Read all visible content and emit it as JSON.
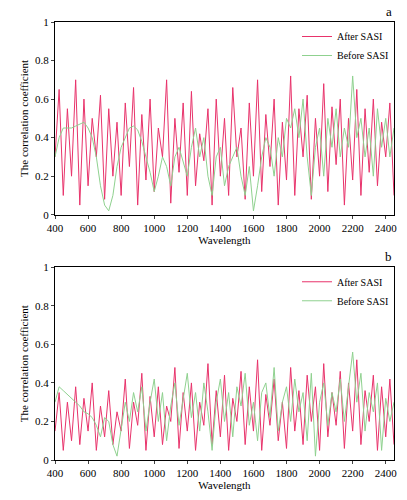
{
  "chart_data": [
    {
      "type": "line",
      "annotations": [
        "a"
      ],
      "x_label": "Wavelength",
      "y_label": "The correlation coefficient",
      "x": [
        400,
        425,
        450,
        475,
        500,
        525,
        550,
        575,
        600,
        625,
        650,
        675,
        700,
        725,
        750,
        775,
        800,
        825,
        850,
        875,
        900,
        925,
        950,
        975,
        1000,
        1025,
        1050,
        1075,
        1100,
        1125,
        1150,
        1175,
        1200,
        1225,
        1250,
        1275,
        1300,
        1325,
        1350,
        1375,
        1400,
        1425,
        1450,
        1475,
        1500,
        1525,
        1550,
        1575,
        1600,
        1625,
        1650,
        1675,
        1700,
        1725,
        1750,
        1775,
        1800,
        1825,
        1850,
        1875,
        1900,
        1925,
        1950,
        1975,
        2000,
        2025,
        2050,
        2075,
        2100,
        2125,
        2150,
        2175,
        2200,
        2225,
        2250,
        2275,
        2300,
        2325,
        2350,
        2375,
        2400,
        2425,
        2450
      ],
      "series": [
        {
          "name": "After SASI",
          "color": "#e8336b",
          "values": [
            0.3,
            0.65,
            0.1,
            0.55,
            0.2,
            0.7,
            0.05,
            0.6,
            0.15,
            0.5,
            0.3,
            0.62,
            0.08,
            0.55,
            0.2,
            0.48,
            0.1,
            0.58,
            0.25,
            0.66,
            0.05,
            0.52,
            0.18,
            0.6,
            0.12,
            0.45,
            0.3,
            0.7,
            0.06,
            0.5,
            0.22,
            0.58,
            0.1,
            0.64,
            0.15,
            0.42,
            0.28,
            0.55,
            0.05,
            0.6,
            0.2,
            0.5,
            0.1,
            0.66,
            0.3,
            0.45,
            0.08,
            0.58,
            0.2,
            0.7,
            0.12,
            0.52,
            0.25,
            0.6,
            0.05,
            0.48,
            0.18,
            0.72,
            0.1,
            0.55,
            0.3,
            0.62,
            0.08,
            0.5,
            0.2,
            0.68,
            0.12,
            0.56,
            0.26,
            0.6,
            0.05,
            0.5,
            0.18,
            0.65,
            0.1,
            0.55,
            0.22,
            0.6,
            0.15,
            0.48,
            0.3,
            0.58,
            0.1
          ]
        },
        {
          "name": "Before SASI",
          "color": "#8fd18f",
          "values": [
            0.3,
            0.4,
            0.45,
            0.45,
            0.45,
            0.46,
            0.47,
            0.48,
            0.45,
            0.4,
            0.3,
            0.15,
            0.05,
            0.02,
            0.1,
            0.25,
            0.35,
            0.4,
            0.45,
            0.46,
            0.44,
            0.38,
            0.3,
            0.22,
            0.12,
            0.2,
            0.3,
            0.25,
            0.15,
            0.3,
            0.35,
            0.28,
            0.2,
            0.35,
            0.45,
            0.3,
            0.4,
            0.2,
            0.1,
            0.3,
            0.35,
            0.15,
            0.25,
            0.3,
            0.35,
            0.2,
            0.1,
            0.25,
            0.02,
            0.15,
            0.3,
            0.4,
            0.35,
            0.2,
            0.4,
            0.3,
            0.5,
            0.45,
            0.55,
            0.4,
            0.6,
            0.3,
            0.1,
            0.35,
            0.45,
            0.2,
            0.5,
            0.35,
            0.55,
            0.3,
            0.45,
            0.35,
            0.72,
            0.4,
            0.5,
            0.3,
            0.45,
            0.2,
            0.55,
            0.35,
            0.5,
            0.3,
            0.45
          ]
        }
      ],
      "xlim": [
        400,
        2450
      ],
      "xticks": [
        400,
        600,
        800,
        1000,
        1200,
        1400,
        1600,
        1800,
        2000,
        2200,
        2400
      ],
      "ylim": [
        0,
        1
      ],
      "yticks": [
        0,
        0.2,
        0.4,
        0.6,
        0.8,
        1
      ],
      "grid": false,
      "legend": "top right"
    },
    {
      "type": "line",
      "annotations": [
        "b"
      ],
      "x_label": "Wavelength",
      "y_label": "The correlation coefficient",
      "x": [
        400,
        425,
        450,
        475,
        500,
        525,
        550,
        575,
        600,
        625,
        650,
        675,
        700,
        725,
        750,
        775,
        800,
        825,
        850,
        875,
        900,
        925,
        950,
        975,
        1000,
        1025,
        1050,
        1075,
        1100,
        1125,
        1150,
        1175,
        1200,
        1225,
        1250,
        1275,
        1300,
        1325,
        1350,
        1375,
        1400,
        1425,
        1450,
        1475,
        1500,
        1525,
        1550,
        1575,
        1600,
        1625,
        1650,
        1675,
        1700,
        1725,
        1750,
        1775,
        1800,
        1825,
        1850,
        1875,
        1900,
        1925,
        1950,
        1975,
        2000,
        2025,
        2050,
        2075,
        2100,
        2125,
        2150,
        2175,
        2200,
        2225,
        2250,
        2275,
        2300,
        2325,
        2350,
        2375,
        2400,
        2425,
        2450
      ],
      "series": [
        {
          "name": "After SASI",
          "color": "#e8336b",
          "values": [
            0.15,
            0.35,
            0.05,
            0.3,
            0.1,
            0.38,
            0.08,
            0.32,
            0.15,
            0.4,
            0.05,
            0.28,
            0.12,
            0.36,
            0.08,
            0.25,
            0.15,
            0.42,
            0.06,
            0.3,
            0.18,
            0.45,
            0.05,
            0.33,
            0.12,
            0.38,
            0.08,
            0.28,
            0.2,
            0.48,
            0.06,
            0.35,
            0.15,
            0.4,
            0.05,
            0.3,
            0.18,
            0.5,
            0.08,
            0.36,
            0.12,
            0.44,
            0.05,
            0.32,
            0.2,
            0.46,
            0.08,
            0.38,
            0.15,
            0.52,
            0.05,
            0.34,
            0.18,
            0.42,
            0.1,
            0.3,
            0.06,
            0.48,
            0.15,
            0.36,
            0.08,
            0.44,
            0.2,
            0.38,
            0.05,
            0.5,
            0.12,
            0.35,
            0.18,
            0.46,
            0.06,
            0.4,
            0.15,
            0.52,
            0.08,
            0.36,
            0.2,
            0.44,
            0.05,
            0.38,
            0.12,
            0.42,
            0.08
          ]
        },
        {
          "name": "Before SASI",
          "color": "#8fd18f",
          "values": [
            0.3,
            0.38,
            0.36,
            0.34,
            0.32,
            0.3,
            0.28,
            0.25,
            0.24,
            0.22,
            0.18,
            0.12,
            0.22,
            0.2,
            0.08,
            0.02,
            0.15,
            0.3,
            0.2,
            0.35,
            0.25,
            0.38,
            0.15,
            0.3,
            0.42,
            0.2,
            0.35,
            0.1,
            0.28,
            0.4,
            0.18,
            0.32,
            0.45,
            0.22,
            0.35,
            0.15,
            0.4,
            0.25,
            0.05,
            0.3,
            0.42,
            0.2,
            0.35,
            0.12,
            0.38,
            0.28,
            0.45,
            0.18,
            0.3,
            0.1,
            0.35,
            0.4,
            0.22,
            0.48,
            0.15,
            0.3,
            0.38,
            0.2,
            0.42,
            0.25,
            0.35,
            0.1,
            0.45,
            0.02,
            0.3,
            0.4,
            0.18,
            0.35,
            0.25,
            0.42,
            0.2,
            0.38,
            0.56,
            0.3,
            0.45,
            0.15,
            0.35,
            0.25,
            0.4,
            0.05,
            0.32,
            0.2,
            0.3
          ]
        }
      ],
      "xlim": [
        400,
        2450
      ],
      "xticks": [
        400,
        600,
        800,
        1000,
        1200,
        1400,
        1600,
        1800,
        2000,
        2200,
        2400
      ],
      "ylim": [
        0,
        1
      ],
      "yticks": [
        0,
        0.2,
        0.4,
        0.6,
        0.8,
        1
      ],
      "grid": false,
      "legend": "top right"
    }
  ]
}
